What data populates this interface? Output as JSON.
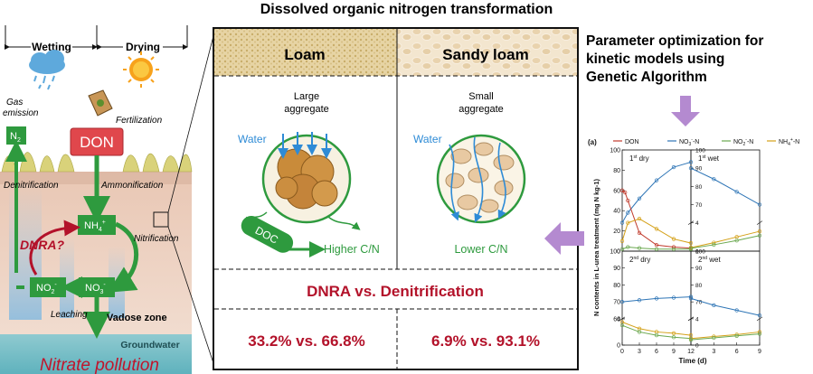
{
  "title": "Dissolved organic nitrogen transformation",
  "left_panel": {
    "wetting": "Wetting",
    "drying": "Drying",
    "gas_emission_1": "Gas",
    "gas_emission_2": "emission",
    "fertilization": "Fertilization",
    "don": "DON",
    "n2": "N",
    "n2_sub": "2",
    "denitrification": "Denitrification",
    "ammonification": "Ammonification",
    "nh4": "NH",
    "nh4_sub": "4",
    "nh4_sup": "+",
    "dnra": "DNRA?",
    "nitrification": "Nitrification",
    "no2": "NO",
    "no2_sub": "2",
    "no2_sup": "-",
    "no3": "NO",
    "no3_sub": "3",
    "no3_sup": "-",
    "leaching": "Leaching",
    "vadose_zone": "Vadose zone",
    "groundwater": "Groundwater",
    "nitrate_pollution": "Nitrate pollution"
  },
  "center_panel": {
    "loam": "Loam",
    "sandy_loam": "Sandy loam",
    "large_1": "Large",
    "large_2": "aggregate",
    "small_1": "Small",
    "small_2": "aggregate",
    "water_left": "Water",
    "water_right": "Water",
    "doc": "DOC",
    "higher_cn": "Higher C/N",
    "lower_cn": "Lower C/N",
    "dnra_vs": "DNRA vs. Denitrification",
    "ratio_loam": "33.2% vs. 66.8%",
    "ratio_sandy": "6.9% vs. 93.1%"
  },
  "right_panel": {
    "heading_1": "Parameter optimization for",
    "heading_2": "kinetic models using",
    "heading_3": "Genetic Algorithm"
  },
  "chart_data": {
    "type": "line",
    "panel_label": "(a)",
    "legend": [
      "DON",
      "NO3--N",
      "NO2--N",
      "NH4+-N"
    ],
    "legend_display": [
      {
        "base": "DON",
        "sub": "",
        "sup": "",
        "tail": ""
      },
      {
        "base": "NO",
        "sub": "3",
        "sup": "-",
        "tail": "-N"
      },
      {
        "base": "NO",
        "sub": "2",
        "sup": "-",
        "tail": "-N"
      },
      {
        "base": "NH",
        "sub": "4",
        "sup": "+",
        "tail": "-N"
      }
    ],
    "colors": {
      "DON": "#c0392b",
      "NO3--N": "#2e75b6",
      "NO2--N": "#6aa84f",
      "NH4+-N": "#d4a017"
    },
    "ylabel": "N contents in L-urea treatment (mg N kg-1)",
    "xlabel": "Time (d)",
    "panels": [
      {
        "label": "1st dry",
        "ord": "st",
        "name": "dry",
        "xlim": [
          0,
          12
        ],
        "xticks": [
          0,
          3,
          6,
          9,
          12
        ],
        "ylim": [
          0,
          100
        ],
        "yticks": [
          0,
          20,
          40,
          60,
          80,
          100
        ]
      },
      {
        "label": "1st wet",
        "ord": "st",
        "name": "wet",
        "xlim": [
          0,
          9
        ],
        "xticks": [
          0,
          3,
          6,
          9
        ],
        "ylim_upper": [
          60,
          100
        ],
        "yticks_upper": [
          70,
          80,
          90,
          100
        ],
        "ylim_lower": [
          0,
          4
        ],
        "yticks_lower": [
          0,
          4
        ]
      },
      {
        "label": "2nd dry",
        "ord": "nd",
        "name": "dry",
        "xlim": [
          0,
          12
        ],
        "xticks": [
          0,
          3,
          6,
          9,
          12
        ],
        "ylim_upper": [
          60,
          100
        ],
        "yticks_upper": [
          60,
          70,
          80,
          90,
          100
        ],
        "ylim_lower": [
          0,
          4
        ],
        "yticks_lower": [
          0,
          4
        ]
      },
      {
        "label": "2nd wet",
        "ord": "nd",
        "name": "wet",
        "xlim": [
          0,
          9
        ],
        "xticks": [
          0,
          3,
          6,
          9
        ],
        "ylim_upper": [
          60,
          100
        ],
        "yticks_upper": [
          70,
          80,
          90,
          100
        ],
        "ylim_lower": [
          0,
          4
        ],
        "yticks_lower": [
          0,
          4
        ]
      }
    ],
    "series": [
      {
        "panel": 0,
        "name": "NO3--N",
        "x": [
          0,
          1,
          3,
          6,
          9,
          12
        ],
        "y": [
          28,
          38,
          52,
          70,
          83,
          88
        ]
      },
      {
        "panel": 0,
        "name": "DON",
        "x": [
          0,
          0.5,
          1,
          3,
          6,
          9,
          12
        ],
        "y": [
          60,
          58,
          50,
          18,
          6,
          4,
          3
        ]
      },
      {
        "panel": 0,
        "name": "NH4+-N",
        "x": [
          0,
          1,
          3,
          6,
          9,
          12
        ],
        "y": [
          10,
          28,
          32,
          22,
          12,
          8
        ]
      },
      {
        "panel": 0,
        "name": "NO2--N",
        "x": [
          0,
          1,
          3,
          6,
          9,
          12
        ],
        "y": [
          2,
          4,
          3,
          2,
          2,
          2
        ]
      },
      {
        "panel": 1,
        "name": "NO3--N",
        "x": [
          0,
          3,
          6,
          9
        ],
        "y": [
          90,
          84,
          77,
          70
        ]
      },
      {
        "panel": 1,
        "name": "NH4+-N",
        "x": [
          0,
          3,
          6,
          9
        ],
        "y": [
          0.5,
          1.2,
          2,
          2.8
        ]
      },
      {
        "panel": 1,
        "name": "NO2--N",
        "x": [
          0,
          3,
          6,
          9
        ],
        "y": [
          0.4,
          0.9,
          1.5,
          2.2
        ]
      },
      {
        "panel": 2,
        "name": "NO3--N",
        "x": [
          0,
          3,
          6,
          9,
          12
        ],
        "y": [
          70,
          71,
          72,
          72.5,
          73
        ]
      },
      {
        "panel": 2,
        "name": "NH4+-N",
        "x": [
          0,
          3,
          6,
          9,
          12
        ],
        "y": [
          3.5,
          2.5,
          2,
          1.8,
          1.5
        ]
      },
      {
        "panel": 2,
        "name": "NO2--N",
        "x": [
          0,
          3,
          6,
          9,
          12
        ],
        "y": [
          3,
          2,
          1.5,
          1.2,
          1
        ]
      },
      {
        "panel": 3,
        "name": "NO3--N",
        "x": [
          0,
          3,
          6,
          9
        ],
        "y": [
          72,
          68,
          65,
          62
        ]
      },
      {
        "panel": 3,
        "name": "NH4+-N",
        "x": [
          0,
          3,
          6,
          9
        ],
        "y": [
          1,
          1.3,
          1.6,
          2
        ]
      },
      {
        "panel": 3,
        "name": "NO2--N",
        "x": [
          0,
          3,
          6,
          9
        ],
        "y": [
          0.8,
          1.1,
          1.4,
          1.7
        ]
      }
    ]
  },
  "colors": {
    "green": "#2e9a3e",
    "dark_red": "#b3122a",
    "blue_water": "#2e8bd6",
    "don_box": "#e0474c",
    "purple_arrow": "#b48ad0"
  }
}
